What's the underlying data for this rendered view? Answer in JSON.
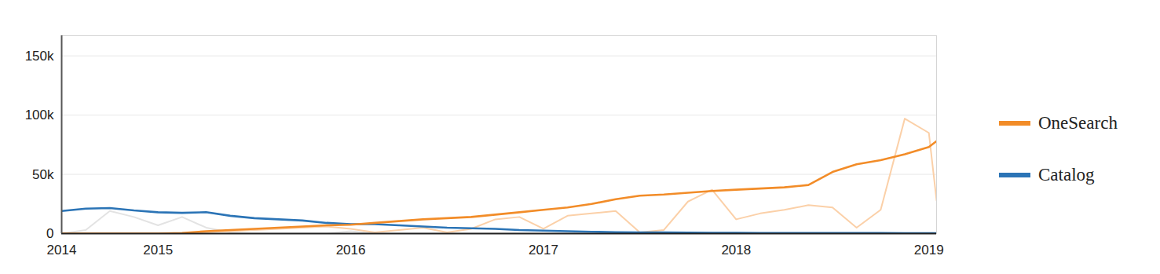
{
  "chart_data": {
    "type": "line",
    "x": [
      2014.5,
      2014.625,
      2014.75,
      2014.875,
      2015,
      2015.125,
      2015.25,
      2015.375,
      2015.5,
      2015.625,
      2015.75,
      2015.875,
      2016,
      2016.125,
      2016.25,
      2016.375,
      2016.5,
      2016.625,
      2016.75,
      2016.875,
      2017,
      2017.125,
      2017.25,
      2017.375,
      2017.5,
      2017.625,
      2017.75,
      2017.875,
      2018,
      2018.125,
      2018.25,
      2018.375,
      2018.5,
      2018.625,
      2018.75,
      2018.875,
      2019,
      2019.04
    ],
    "series": [
      {
        "color": "#e3e3e3",
        "values": [
          0,
          3000,
          19000,
          14000,
          7000,
          14000,
          5000,
          1000,
          0,
          0,
          0,
          0,
          2000,
          0,
          0,
          0,
          0,
          0,
          0,
          0,
          0,
          0,
          0,
          0,
          0,
          0,
          0,
          0,
          0,
          0,
          0,
          0,
          0,
          0,
          0,
          0,
          0,
          0
        ]
      },
      {
        "color": "#fbd0a8",
        "values": [
          0,
          0,
          0,
          0,
          0,
          0,
          1000,
          2000,
          3000,
          4000,
          5000,
          6000,
          4000,
          1000,
          3000,
          5000,
          1000,
          4000,
          12000,
          14000,
          4000,
          15000,
          17000,
          19000,
          1000,
          3000,
          27000,
          37000,
          12000,
          17000,
          20000,
          24000,
          22000,
          5000,
          20000,
          97000,
          85000,
          28000
        ]
      },
      {
        "name": "Catalog",
        "color": "#2b74b6",
        "values": [
          19000,
          21000,
          21500,
          19500,
          18000,
          17500,
          18000,
          15000,
          13000,
          12000,
          11000,
          9000,
          8000,
          8000,
          7000,
          6000,
          5000,
          4500,
          4000,
          3000,
          2500,
          2000,
          1500,
          1200,
          1000,
          900,
          800,
          700,
          600,
          500,
          500,
          500,
          400,
          400,
          400,
          300,
          300,
          300
        ]
      },
      {
        "name": "OneSearch",
        "color": "#f28c28",
        "values": [
          0,
          0,
          0,
          0,
          0,
          500,
          2000,
          3000,
          4000,
          5000,
          6000,
          7000,
          7500,
          9000,
          10500,
          12000,
          13000,
          14000,
          16000,
          18000,
          20000,
          22000,
          25000,
          29000,
          32000,
          33000,
          34500,
          36000,
          37000,
          38000,
          39000,
          41000,
          52000,
          58500,
          62000,
          67000,
          73000,
          78000
        ]
      }
    ],
    "xlim": [
      2014.5,
      2019.04
    ],
    "xticks": [
      {
        "value": 2014.5,
        "label": "2014"
      },
      2015,
      2016,
      2017,
      2018,
      2019
    ],
    "ylim": [
      0,
      167000
    ],
    "yticks": [
      0,
      {
        "value": 50000,
        "label": "50k"
      },
      {
        "value": 100000,
        "label": "100k"
      },
      {
        "value": 150000,
        "label": "150k"
      }
    ],
    "grid": true,
    "legend": "right"
  }
}
